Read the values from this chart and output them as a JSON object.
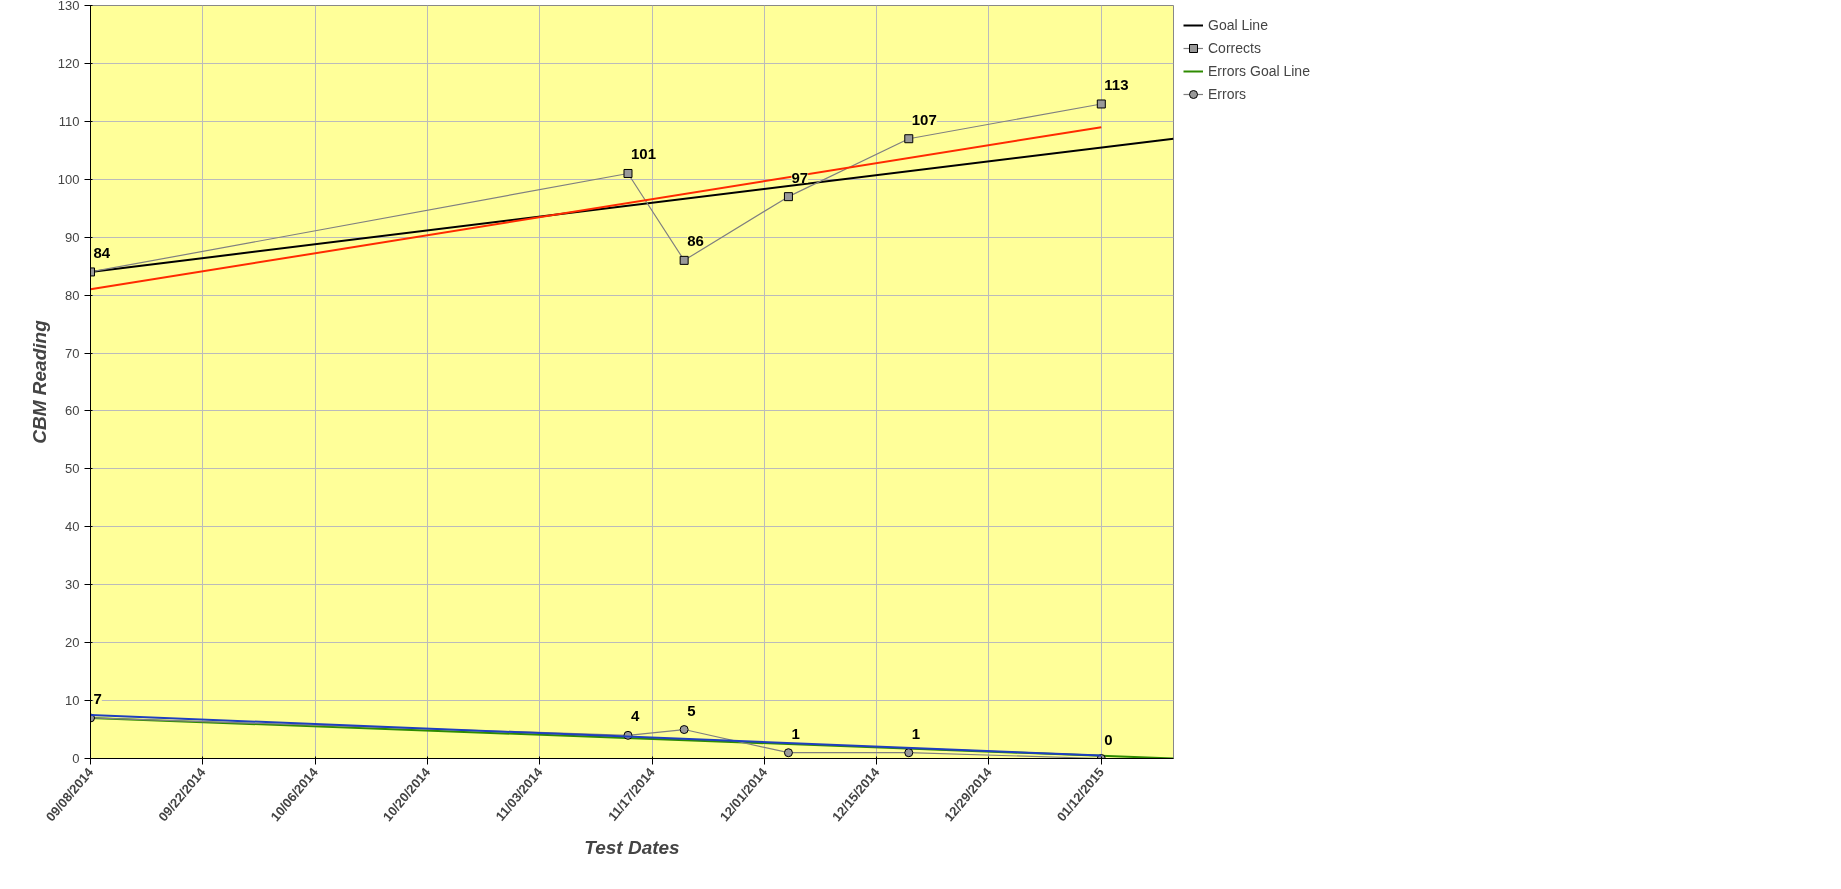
{
  "chart_data": {
    "type": "line",
    "xlabel": "Test Dates",
    "ylabel": "CBM Reading",
    "xlim": [
      "2014-09-08",
      "2015-01-21"
    ],
    "ylim": [
      0,
      130
    ],
    "xticks": [
      {
        "value": "2014-09-08",
        "label": "09/08/2014"
      },
      {
        "value": "2014-09-22",
        "label": "09/22/2014"
      },
      {
        "value": "2014-10-06",
        "label": "10/06/2014"
      },
      {
        "value": "2014-10-20",
        "label": "10/20/2014"
      },
      {
        "value": "2014-11-03",
        "label": "11/03/2014"
      },
      {
        "value": "2014-11-17",
        "label": "11/17/2014"
      },
      {
        "value": "2014-12-01",
        "label": "12/01/2014"
      },
      {
        "value": "2014-12-15",
        "label": "12/15/2014"
      },
      {
        "value": "2014-12-29",
        "label": "12/29/2014"
      },
      {
        "value": "2015-01-12",
        "label": "01/12/2015"
      }
    ],
    "yticks": [
      0,
      10,
      20,
      30,
      40,
      50,
      60,
      70,
      80,
      90,
      100,
      110,
      120,
      130
    ],
    "grid": true,
    "legend": "right",
    "series": [
      {
        "name": "Goal Line",
        "color": "#000000",
        "x": [
          "2014-09-08",
          "2015-01-21"
        ],
        "values": [
          84,
          107
        ]
      },
      {
        "name": "Corrects",
        "color": "#808080",
        "marker": "square",
        "x": [
          "2014-09-08",
          "2014-11-14",
          "2014-11-21",
          "2014-12-04",
          "2014-12-19",
          "2015-01-12"
        ],
        "values": [
          84,
          101,
          86,
          97,
          107,
          113
        ],
        "value_labels": [
          "84",
          "101",
          "86",
          "97",
          "107",
          "113"
        ]
      },
      {
        "name": "Errors Goal Line",
        "color": "#2e8b00",
        "x": [
          "2014-09-08",
          "2015-01-21"
        ],
        "values": [
          7,
          0
        ]
      },
      {
        "name": "Errors",
        "color": "#808080",
        "marker": "circle",
        "x": [
          "2014-09-08",
          "2014-11-14",
          "2014-11-21",
          "2014-12-04",
          "2014-12-19",
          "2015-01-12"
        ],
        "values": [
          7,
          4,
          5,
          1,
          1,
          0
        ],
        "value_labels": [
          "7",
          "4",
          "5",
          "1",
          "1",
          "0"
        ]
      },
      {
        "color": "#ff2a00",
        "marker": "none",
        "x": [
          "2014-09-08",
          "2015-01-12"
        ],
        "values": [
          81,
          109
        ]
      },
      {
        "color": "#1f3fbf",
        "marker": "none",
        "x": [
          "2014-09-08",
          "2015-01-12"
        ],
        "values": [
          7.5,
          0.5
        ]
      }
    ]
  }
}
